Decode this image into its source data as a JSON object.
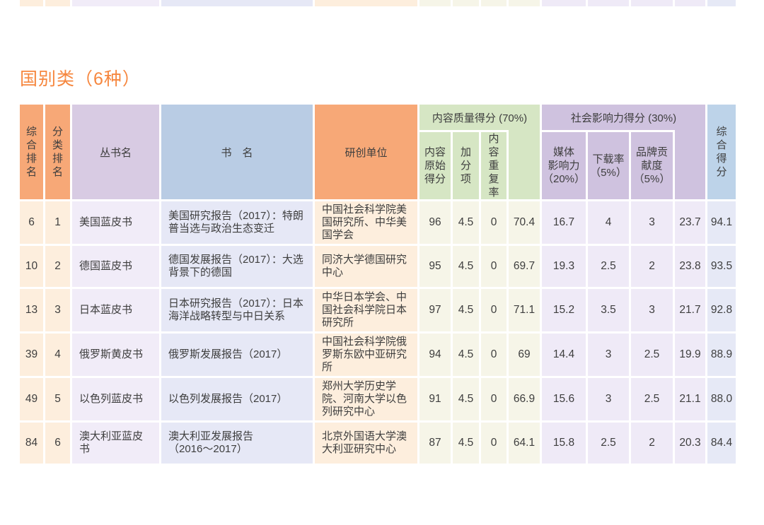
{
  "section": {
    "title": "国别类（6种）"
  },
  "table": {
    "header": {
      "overall_rank": "综合排名",
      "category_rank": "分类排名",
      "series": "丛书名",
      "book": "书　名",
      "org": "研创单位",
      "content_group": "内容质量得分 (70%)",
      "content_sub": [
        "内容\n原始\n得分",
        "加分项",
        "内容重复率"
      ],
      "social_group": "社会影响力得分 (30%)",
      "social_sub": [
        "媒体\n影响力\n（20%）",
        "下载率\n（5%）",
        "品牌贡\n献度\n（5%）"
      ],
      "total": "综合得分"
    },
    "rows": [
      {
        "overall_rank": "6",
        "category_rank": "1",
        "series": "美国蓝皮书",
        "book": "美国研究报告（2017）：特朗普当选与政治生态变迁",
        "org": "中国社会科学院美国研究所、中华美国学会",
        "content_raw": "96",
        "bonus": "4.5",
        "dup_rate": "0",
        "content_score": "70.4",
        "media": "16.7",
        "download": "4",
        "brand": "3",
        "social_score": "23.7",
        "total": "94.1"
      },
      {
        "overall_rank": "10",
        "category_rank": "2",
        "series": "德国蓝皮书",
        "book": "德国发展报告（2017）：大选背景下的德国",
        "org": "同济大学德国研究中心",
        "content_raw": "95",
        "bonus": "4.5",
        "dup_rate": "0",
        "content_score": "69.7",
        "media": "19.3",
        "download": "2.5",
        "brand": "2",
        "social_score": "23.8",
        "total": "93.5"
      },
      {
        "overall_rank": "13",
        "category_rank": "3",
        "series": "日本蓝皮书",
        "book": "日本研究报告（2017）：日本海洋战略转型与中日关系",
        "org": "中华日本学会、中国社会科学院日本研究所",
        "content_raw": "97",
        "bonus": "4.5",
        "dup_rate": "0",
        "content_score": "71.1",
        "media": "15.2",
        "download": "3.5",
        "brand": "3",
        "social_score": "21.7",
        "total": "92.8"
      },
      {
        "overall_rank": "39",
        "category_rank": "4",
        "series": "俄罗斯黄皮书",
        "book": "俄罗斯发展报告（2017）",
        "org": "中国社会科学院俄罗斯东欧中亚研究所",
        "content_raw": "94",
        "bonus": "4.5",
        "dup_rate": "0",
        "content_score": "69",
        "media": "14.4",
        "download": "3",
        "brand": "2.5",
        "social_score": "19.9",
        "total": "88.9"
      },
      {
        "overall_rank": "49",
        "category_rank": "5",
        "series": "以色列蓝皮书",
        "book": "以色列发展报告（2017）",
        "org": "郑州大学历史学院、河南大学以色列研究中心",
        "content_raw": "91",
        "bonus": "4.5",
        "dup_rate": "0",
        "content_score": "66.9",
        "media": "15.6",
        "download": "3",
        "brand": "2.5",
        "social_score": "21.1",
        "total": "88.0"
      },
      {
        "overall_rank": "84",
        "category_rank": "6",
        "series": "澳大利亚蓝皮书",
        "book": "澳大利亚发展报告\n（2016～2017）",
        "org": "北京外国语大学澳大利亚研究中心",
        "content_raw": "87",
        "bonus": "4.5",
        "dup_rate": "0",
        "content_score": "64.1",
        "media": "15.8",
        "download": "2.5",
        "brand": "2",
        "social_score": "20.3",
        "total": "84.4"
      }
    ]
  },
  "top_strip_cells": [
    "row_peach",
    "row_peach",
    "row_lavender_light",
    "row_periwinkle",
    "row_peach",
    "row_ivory",
    "row_ivory",
    "row_ivory",
    "row_ivory",
    "row_lavender",
    "row_lavender",
    "row_lavender",
    "row_lavender",
    "row_total_periwinkle"
  ],
  "colors": {
    "accent_title": "#f6873f",
    "header_orange": "#f7a877",
    "header_lavender": "#d8cbe3",
    "header_blue": "#b9cce4",
    "header_green": "#d6e6c4",
    "header_purple": "#cfc2df",
    "header_total_blue": "#bdd3e9",
    "row_peach": "#fdeedd",
    "row_lavender_light": "#f1ecf8",
    "row_periwinkle": "#e6e8f6",
    "row_ivory": "#f6f5e8",
    "row_lavender": "#efeaf7",
    "row_total_periwinkle": "#e6e9f6",
    "text_dark": "#3e3e3e"
  }
}
